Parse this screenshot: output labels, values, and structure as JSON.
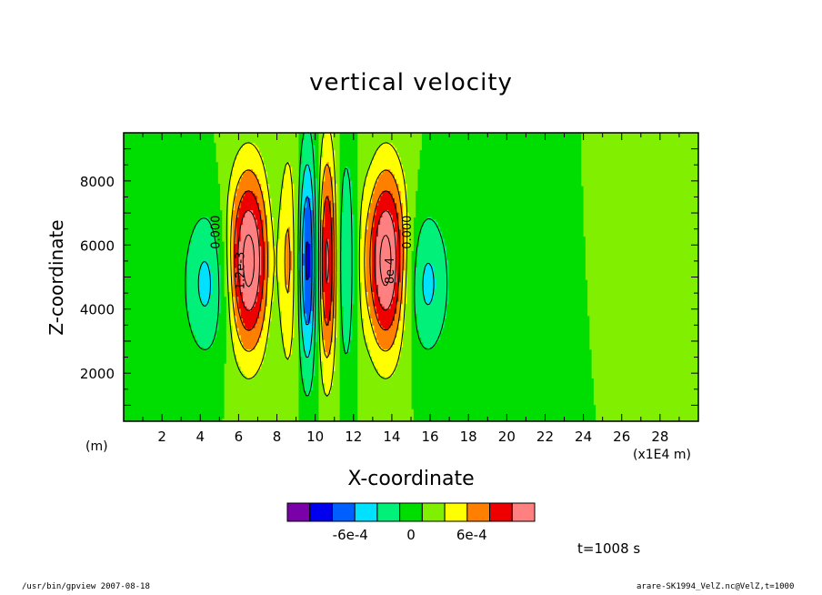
{
  "chart_data": {
    "type": "heatmap",
    "title": "vertical velocity",
    "xlabel": "X-coordinate",
    "ylabel": "Z-coordinate",
    "x_unit_left": "(m)",
    "x_unit_right": "(x1E4 m)",
    "xlim": [
      0,
      30
    ],
    "ylim": [
      500,
      9500
    ],
    "x_ticks": [
      2,
      4,
      6,
      8,
      10,
      12,
      14,
      16,
      18,
      20,
      22,
      24,
      26,
      28
    ],
    "y_ticks": [
      2000,
      4000,
      6000,
      8000
    ],
    "levels": [
      -0.001,
      -0.0008,
      -0.0006,
      -0.0004,
      -0.0002,
      0,
      0.0002,
      0.0004,
      0.0006,
      0.0008,
      0.001
    ],
    "colorbar_ticks": [
      {
        "value": -0.0006,
        "label": "-6e-4"
      },
      {
        "value": 0,
        "label": "0"
      },
      {
        "value": 0.0006,
        "label": "6e-4"
      }
    ],
    "colorbar_colors": [
      "#7a00aa",
      "#0000ee",
      "#0060ff",
      "#00e0ff",
      "#00f07a",
      "#00dd00",
      "#80f000",
      "#ffff00",
      "#ff8000",
      "#ee0000",
      "#ff8080"
    ],
    "features": [
      {
        "name": "updraft-west",
        "x": 6.5,
        "z": 5500,
        "amplitude": 0.0011,
        "sigma_x": 0.75,
        "sigma_z": 2000
      },
      {
        "name": "updraft-east",
        "x": 13.7,
        "z": 5500,
        "amplitude": 0.0011,
        "sigma_x": 0.75,
        "sigma_z": 2000
      },
      {
        "name": "downdraft-west",
        "x": 4.3,
        "z": 4800,
        "amplitude": -0.00045,
        "sigma_x": 0.85,
        "sigma_z": 1650
      },
      {
        "name": "downdraft-east",
        "x": 15.8,
        "z": 4800,
        "amplitude": -0.00045,
        "sigma_x": 0.85,
        "sigma_z": 1650
      },
      {
        "name": "core-wave",
        "x_center": 10.1,
        "x_halfwidth": 3.0,
        "wavelength": 2.2,
        "z": 5500,
        "amplitude": 0.0009,
        "sigma_z": 2500
      },
      {
        "name": "upper-right-dip",
        "x": 27.2,
        "z": 9500,
        "amplitude": 0.00012,
        "sigma_x": 0.35,
        "sigma_z": 1200
      }
    ],
    "contour_labels": [
      {
        "x": 5.0,
        "z": 6400,
        "text": "0.000"
      },
      {
        "x": 6.3,
        "z": 5200,
        "text": "1.2e-3"
      },
      {
        "x": 15.0,
        "z": 6400,
        "text": "0.000"
      },
      {
        "x": 14.1,
        "z": 5200,
        "text": "8e-4"
      }
    ]
  },
  "time_label": "t=1008 s",
  "footer_left": "/usr/bin/gpview   2007-08-18",
  "footer_right": "arare-SK1994_VelZ.nc@VelZ,t=1000"
}
